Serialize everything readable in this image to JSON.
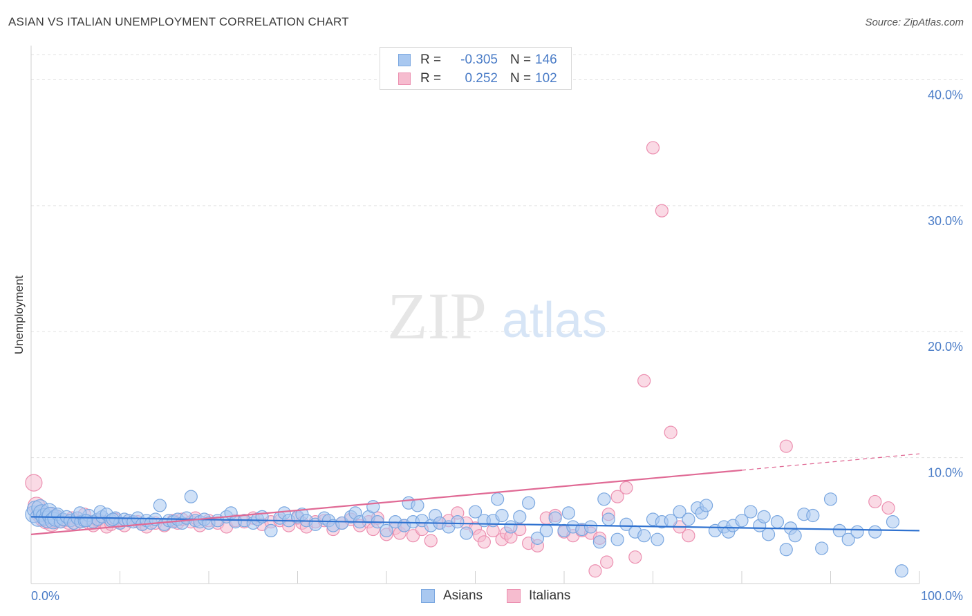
{
  "title": "ASIAN VS ITALIAN UNEMPLOYMENT CORRELATION CHART",
  "source": "Source: ZipAtlas.com",
  "watermark": {
    "zip": "ZIP",
    "atlas": "atlas"
  },
  "legend_top": {
    "rows": [
      {
        "r_label": "R =",
        "r_value": "-0.305",
        "n_label": "N =",
        "n_value": "146",
        "color": "#a9c8f0",
        "border": "#7aa7e0"
      },
      {
        "r_label": "R =",
        "r_value": "0.252",
        "n_label": "N =",
        "n_value": "102",
        "color": "#f6bccf",
        "border": "#ec8fb0"
      }
    ]
  },
  "legend_bottom": [
    {
      "label": "Asians",
      "color": "#a9c8f0",
      "border": "#7aa7e0"
    },
    {
      "label": "Italians",
      "color": "#f6bccf",
      "border": "#ec8fb0"
    }
  ],
  "chart_data": {
    "type": "scatter",
    "title": "ASIAN VS ITALIAN UNEMPLOYMENT CORRELATION CHART",
    "xlabel": "",
    "ylabel": "Unemployment",
    "xlim": [
      0,
      100
    ],
    "ylim": [
      0,
      42
    ],
    "x_tick_labels": [
      "0.0%",
      "100.0%"
    ],
    "y_ticks": [
      10,
      20,
      30,
      40
    ],
    "y_tick_labels": [
      "10.0%",
      "20.0%",
      "30.0%",
      "40.0%"
    ],
    "grid": true,
    "legend_position": "top-center",
    "series": [
      {
        "name": "Asians",
        "color": "#7aa7e0",
        "fill": "#a9c8f0",
        "trend": {
          "x": [
            0,
            100
          ],
          "y": [
            5.3,
            4.2
          ],
          "color": "#2f72d0"
        },
        "points": [
          [
            0.3,
            5.5
          ],
          [
            0.5,
            5.9
          ],
          [
            0.8,
            5.2
          ],
          [
            1,
            6
          ],
          [
            1.2,
            5.6
          ],
          [
            1.5,
            5.3
          ],
          [
            1.8,
            5.1
          ],
          [
            2,
            5.7
          ],
          [
            2.2,
            5.4
          ],
          [
            2.5,
            5.0
          ],
          [
            2.8,
            5.2
          ],
          [
            3,
            5.5
          ],
          [
            3.3,
            4.9
          ],
          [
            3.6,
            5.1
          ],
          [
            4,
            5.3
          ],
          [
            4.4,
            5.0
          ],
          [
            4.8,
            4.8
          ],
          [
            5.2,
            5.2
          ],
          [
            5.6,
            4.9
          ],
          [
            6,
            5.0
          ],
          [
            6.5,
            5.4
          ],
          [
            7,
            4.9
          ],
          [
            7.5,
            5.1
          ],
          [
            8,
            5.3
          ],
          [
            7.8,
            5.7
          ],
          [
            8.5,
            5.5
          ],
          [
            9,
            5.0
          ],
          [
            9.5,
            5.2
          ],
          [
            10,
            4.8
          ],
          [
            10.5,
            5.1
          ],
          [
            11,
            5.0
          ],
          [
            11.5,
            4.9
          ],
          [
            12,
            5.2
          ],
          [
            12.5,
            4.7
          ],
          [
            13,
            5.0
          ],
          [
            13.5,
            4.8
          ],
          [
            14,
            5.1
          ],
          [
            14.5,
            6.2
          ],
          [
            15,
            4.7
          ],
          [
            15.5,
            5.0
          ],
          [
            16,
            4.9
          ],
          [
            16.5,
            5.1
          ],
          [
            17,
            4.8
          ],
          [
            17.5,
            5.2
          ],
          [
            18,
            6.9
          ],
          [
            18.5,
            5.0
          ],
          [
            19,
            4.9
          ],
          [
            19.5,
            5.1
          ],
          [
            20,
            4.8
          ],
          [
            21,
            5.0
          ],
          [
            22,
            5.3
          ],
          [
            22.5,
            5.6
          ],
          [
            23,
            4.9
          ],
          [
            24,
            5.0
          ],
          [
            25,
            4.8
          ],
          [
            25.5,
            5.1
          ],
          [
            26,
            5.3
          ],
          [
            27,
            4.2
          ],
          [
            28,
            5.2
          ],
          [
            28.5,
            5.6
          ],
          [
            29,
            5.0
          ],
          [
            30,
            5.3
          ],
          [
            30.5,
            5.5
          ],
          [
            31,
            5.0
          ],
          [
            32,
            4.7
          ],
          [
            33,
            5.2
          ],
          [
            33.5,
            5.0
          ],
          [
            34,
            4.6
          ],
          [
            35,
            4.8
          ],
          [
            36,
            5.3
          ],
          [
            36.5,
            5.6
          ],
          [
            37,
            4.9
          ],
          [
            38,
            5.3
          ],
          [
            38.5,
            6.1
          ],
          [
            39,
            4.9
          ],
          [
            40,
            4.2
          ],
          [
            41,
            4.9
          ],
          [
            42,
            4.6
          ],
          [
            42.5,
            6.4
          ],
          [
            43,
            4.9
          ],
          [
            43.5,
            6.2
          ],
          [
            44,
            5.0
          ],
          [
            45,
            4.6
          ],
          [
            45.5,
            5.4
          ],
          [
            46,
            4.8
          ],
          [
            47,
            4.5
          ],
          [
            48,
            4.9
          ],
          [
            49,
            4.0
          ],
          [
            50,
            5.7
          ],
          [
            51,
            5.0
          ],
          [
            52,
            5.0
          ],
          [
            52.5,
            6.7
          ],
          [
            53,
            5.4
          ],
          [
            54,
            4.5
          ],
          [
            55,
            5.3
          ],
          [
            56,
            6.4
          ],
          [
            57,
            3.6
          ],
          [
            58,
            4.2
          ],
          [
            59,
            5.2
          ],
          [
            60,
            4.2
          ],
          [
            60.5,
            5.6
          ],
          [
            61,
            4.5
          ],
          [
            62,
            4.3
          ],
          [
            63,
            4.5
          ],
          [
            64,
            3.3
          ],
          [
            64.5,
            6.7
          ],
          [
            65,
            5.1
          ],
          [
            66,
            3.5
          ],
          [
            67,
            4.7
          ],
          [
            68,
            4.1
          ],
          [
            69,
            3.8
          ],
          [
            70,
            5.1
          ],
          [
            70.5,
            3.5
          ],
          [
            71,
            4.9
          ],
          [
            72,
            5.0
          ],
          [
            73,
            5.7
          ],
          [
            74,
            5.1
          ],
          [
            75,
            6.0
          ],
          [
            75.5,
            5.6
          ],
          [
            76,
            6.2
          ],
          [
            77,
            4.2
          ],
          [
            78,
            4.5
          ],
          [
            78.5,
            4.1
          ],
          [
            79,
            4.6
          ],
          [
            80,
            5.0
          ],
          [
            81,
            5.7
          ],
          [
            82,
            4.6
          ],
          [
            82.5,
            5.3
          ],
          [
            83,
            3.9
          ],
          [
            84,
            4.9
          ],
          [
            85,
            2.7
          ],
          [
            85.5,
            4.4
          ],
          [
            86,
            3.8
          ],
          [
            87,
            5.5
          ],
          [
            88,
            5.4
          ],
          [
            89,
            2.8
          ],
          [
            90,
            6.7
          ],
          [
            91,
            4.2
          ],
          [
            92,
            3.5
          ],
          [
            93,
            4.1
          ],
          [
            95,
            4.1
          ],
          [
            97,
            4.9
          ],
          [
            98,
            1.0
          ],
          [
            5.5,
            5.6
          ],
          [
            6.2,
            5.0
          ],
          [
            9.2,
            5.1
          ]
        ]
      },
      {
        "name": "Italians",
        "color": "#ec8fb0",
        "fill": "#f6bccf",
        "trend": {
          "x": [
            0,
            80
          ],
          "y": [
            3.9,
            9.0
          ],
          "dashed_to": [
            100,
            10.3
          ],
          "color": "#e06a95"
        },
        "points": [
          [
            0.3,
            8.0
          ],
          [
            0.6,
            6.2
          ],
          [
            1,
            5.5
          ],
          [
            1.3,
            5.2
          ],
          [
            1.7,
            5.0
          ],
          [
            2,
            5.4
          ],
          [
            2.3,
            4.8
          ],
          [
            2.7,
            5.1
          ],
          [
            3,
            5.3
          ],
          [
            3.4,
            4.9
          ],
          [
            3.8,
            5.0
          ],
          [
            4.2,
            4.8
          ],
          [
            4.6,
            5.2
          ],
          [
            5,
            4.7
          ],
          [
            5.5,
            4.9
          ],
          [
            6,
            5.5
          ],
          [
            6.5,
            4.8
          ],
          [
            7,
            4.6
          ],
          [
            7.5,
            5.0
          ],
          [
            8,
            4.9
          ],
          [
            8.5,
            4.5
          ],
          [
            9,
            4.7
          ],
          [
            9.5,
            5.1
          ],
          [
            10,
            4.8
          ],
          [
            10.5,
            4.6
          ],
          [
            11,
            5.0
          ],
          [
            12,
            4.9
          ],
          [
            12.5,
            4.7
          ],
          [
            13,
            4.5
          ],
          [
            14,
            4.8
          ],
          [
            15,
            4.6
          ],
          [
            16,
            5.0
          ],
          [
            16.5,
            4.8
          ],
          [
            17,
            5.1
          ],
          [
            18,
            4.9
          ],
          [
            18.5,
            5.2
          ],
          [
            19,
            4.6
          ],
          [
            20,
            5.0
          ],
          [
            21,
            4.8
          ],
          [
            22,
            4.5
          ],
          [
            23,
            5.0
          ],
          [
            24,
            4.9
          ],
          [
            25,
            5.2
          ],
          [
            26,
            4.7
          ],
          [
            27,
            4.9
          ],
          [
            28,
            5.0
          ],
          [
            29,
            4.6
          ],
          [
            30,
            5.2
          ],
          [
            30.5,
            4.8
          ],
          [
            31,
            4.5
          ],
          [
            32,
            4.9
          ],
          [
            33,
            5.0
          ],
          [
            34,
            4.3
          ],
          [
            35,
            4.8
          ],
          [
            36,
            5.1
          ],
          [
            37,
            4.6
          ],
          [
            38,
            4.9
          ],
          [
            38.5,
            4.3
          ],
          [
            39,
            5.2
          ],
          [
            40,
            3.9
          ],
          [
            41,
            4.4
          ],
          [
            41.5,
            4.0
          ],
          [
            42,
            4.6
          ],
          [
            43,
            3.8
          ],
          [
            44,
            4.3
          ],
          [
            45,
            3.4
          ],
          [
            46,
            4.8
          ],
          [
            47,
            5.0
          ],
          [
            48,
            5.6
          ],
          [
            49,
            4.8
          ],
          [
            50,
            4.4
          ],
          [
            50.5,
            3.8
          ],
          [
            51,
            3.3
          ],
          [
            52,
            4.2
          ],
          [
            53,
            3.5
          ],
          [
            53.5,
            4.0
          ],
          [
            54,
            3.7
          ],
          [
            55,
            4.3
          ],
          [
            56,
            3.2
          ],
          [
            57,
            3.0
          ],
          [
            58,
            5.2
          ],
          [
            59,
            5.4
          ],
          [
            60,
            4.1
          ],
          [
            61,
            3.8
          ],
          [
            62,
            4.2
          ],
          [
            63,
            4.0
          ],
          [
            64,
            3.6
          ],
          [
            65,
            5.5
          ],
          [
            66,
            6.9
          ],
          [
            67,
            7.6
          ],
          [
            68,
            2.1
          ],
          [
            69,
            16.1
          ],
          [
            70,
            34.6
          ],
          [
            71,
            29.6
          ],
          [
            72,
            12.0
          ],
          [
            73,
            4.5
          ],
          [
            74,
            3.8
          ],
          [
            63.5,
            1.0
          ],
          [
            64.8,
            1.7
          ],
          [
            85,
            10.9
          ],
          [
            95,
            6.5
          ],
          [
            96.5,
            6.0
          ]
        ]
      }
    ]
  }
}
